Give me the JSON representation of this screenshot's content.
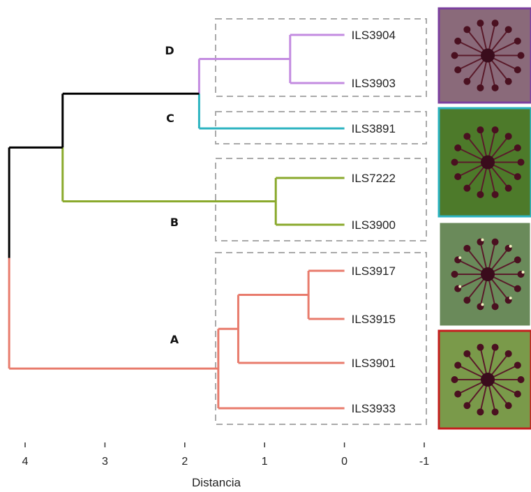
{
  "dendrogram": {
    "axis_title": "Distancia",
    "ticks": [
      4,
      3,
      2,
      1,
      0,
      -1
    ],
    "xlim": [
      4.2,
      -1
    ],
    "leaves": [
      {
        "label": "ILS3904",
        "cluster": "D"
      },
      {
        "label": "ILS3903",
        "cluster": "D"
      },
      {
        "label": "ILS3891",
        "cluster": "C"
      },
      {
        "label": "ILS7222",
        "cluster": "B"
      },
      {
        "label": "ILS3900",
        "cluster": "B"
      },
      {
        "label": "ILS3917",
        "cluster": "A"
      },
      {
        "label": "ILS3915",
        "cluster": "A"
      },
      {
        "label": "ILS3901",
        "cluster": "A"
      },
      {
        "label": "ILS3933",
        "cluster": "A"
      }
    ],
    "merges": [
      {
        "id": "d1",
        "height": 0.68,
        "children": [
          "ILS3904",
          "ILS3903"
        ],
        "color": "#c38be0"
      },
      {
        "id": "b1",
        "height": 0.86,
        "children": [
          "ILS7222",
          "ILS3900"
        ],
        "color": "#8aa92c"
      },
      {
        "id": "a1",
        "height": 0.45,
        "children": [
          "ILS3917",
          "ILS3915"
        ],
        "color": "#e87b6c"
      },
      {
        "id": "a2",
        "height": 1.33,
        "children": [
          "a1",
          "ILS3901"
        ],
        "color": "#e87b6c"
      },
      {
        "id": "a3",
        "height": 1.58,
        "children": [
          "a2",
          "ILS3933"
        ],
        "color": "#e87b6c"
      },
      {
        "id": "dc",
        "height": 1.82,
        "children": [
          "d1",
          "ILS3891"
        ],
        "color": "#000000",
        "child_colors": [
          "#c38be0",
          "#2bb3c0"
        ]
      },
      {
        "id": "dcb",
        "height": 3.53,
        "children": [
          "dc",
          "b1"
        ],
        "color": "#000000",
        "child_colors": [
          "#000000",
          "#8aa92c"
        ]
      },
      {
        "id": "root",
        "height": 4.2,
        "children": [
          "dcb",
          "a3"
        ],
        "color": "#000000",
        "child_colors": [
          "#000000",
          "#e87b6c"
        ]
      }
    ],
    "clusters": [
      {
        "name": "D",
        "color": "#c38be0"
      },
      {
        "name": "C",
        "color": "#2bb3c0"
      },
      {
        "name": "B",
        "color": "#8aa92c"
      },
      {
        "name": "A",
        "color": "#e87b6c"
      }
    ],
    "photos": [
      {
        "name": "photo-1",
        "border": "#7b3f9e",
        "bg": "#8a6a7a"
      },
      {
        "name": "photo-2",
        "border": "#2bb3c0",
        "bg": "#4d7a2a"
      },
      {
        "name": "photo-3",
        "border": "#ffffff",
        "bg": "#6a8a5a"
      },
      {
        "name": "photo-4",
        "border": "#c41e1e",
        "bg": "#7a9a4a"
      }
    ]
  }
}
